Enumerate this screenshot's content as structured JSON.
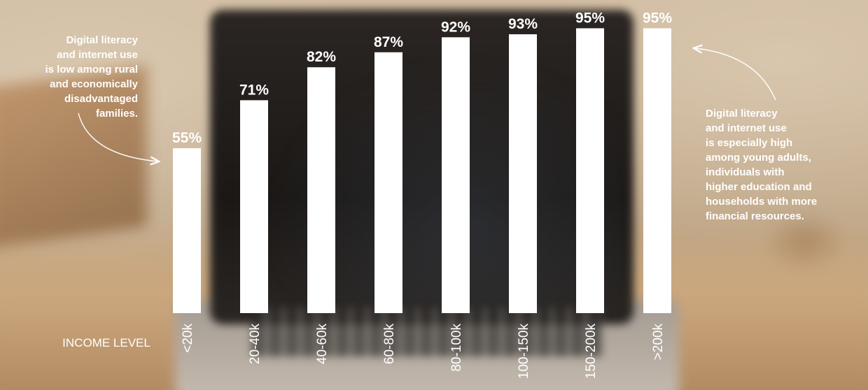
{
  "chart_data": {
    "type": "bar",
    "xlabel": "INCOME LEVEL",
    "categories": [
      "<20k",
      "20-40k",
      "40-60k",
      "60-80k",
      "80-100k",
      "100-150k",
      "150-200k",
      ">200k"
    ],
    "values": [
      55,
      71,
      82,
      87,
      92,
      93,
      95,
      95
    ],
    "value_labels": [
      "55%",
      "71%",
      "82%",
      "87%",
      "92%",
      "93%",
      "95%",
      "95%"
    ],
    "ylim": [
      0,
      100
    ],
    "grid": false,
    "bar_color": "#ffffff",
    "annotations": [
      "Digital literacy and internet use is low among rural and economically disadvantaged families.",
      "Digital literacy and internet use is especially high among young adults, individuals with higher education and households with more financial resources."
    ]
  },
  "notes": {
    "left_lines": [
      "Digital literacy",
      "and internet use",
      "is low among rural",
      "and economically",
      "disadvantaged",
      "families."
    ],
    "right_lines": [
      "Digital literacy",
      "and internet use",
      "is especially high",
      "among young adults,",
      "individuals with",
      "higher education and",
      "households with more",
      "financial resources."
    ]
  }
}
